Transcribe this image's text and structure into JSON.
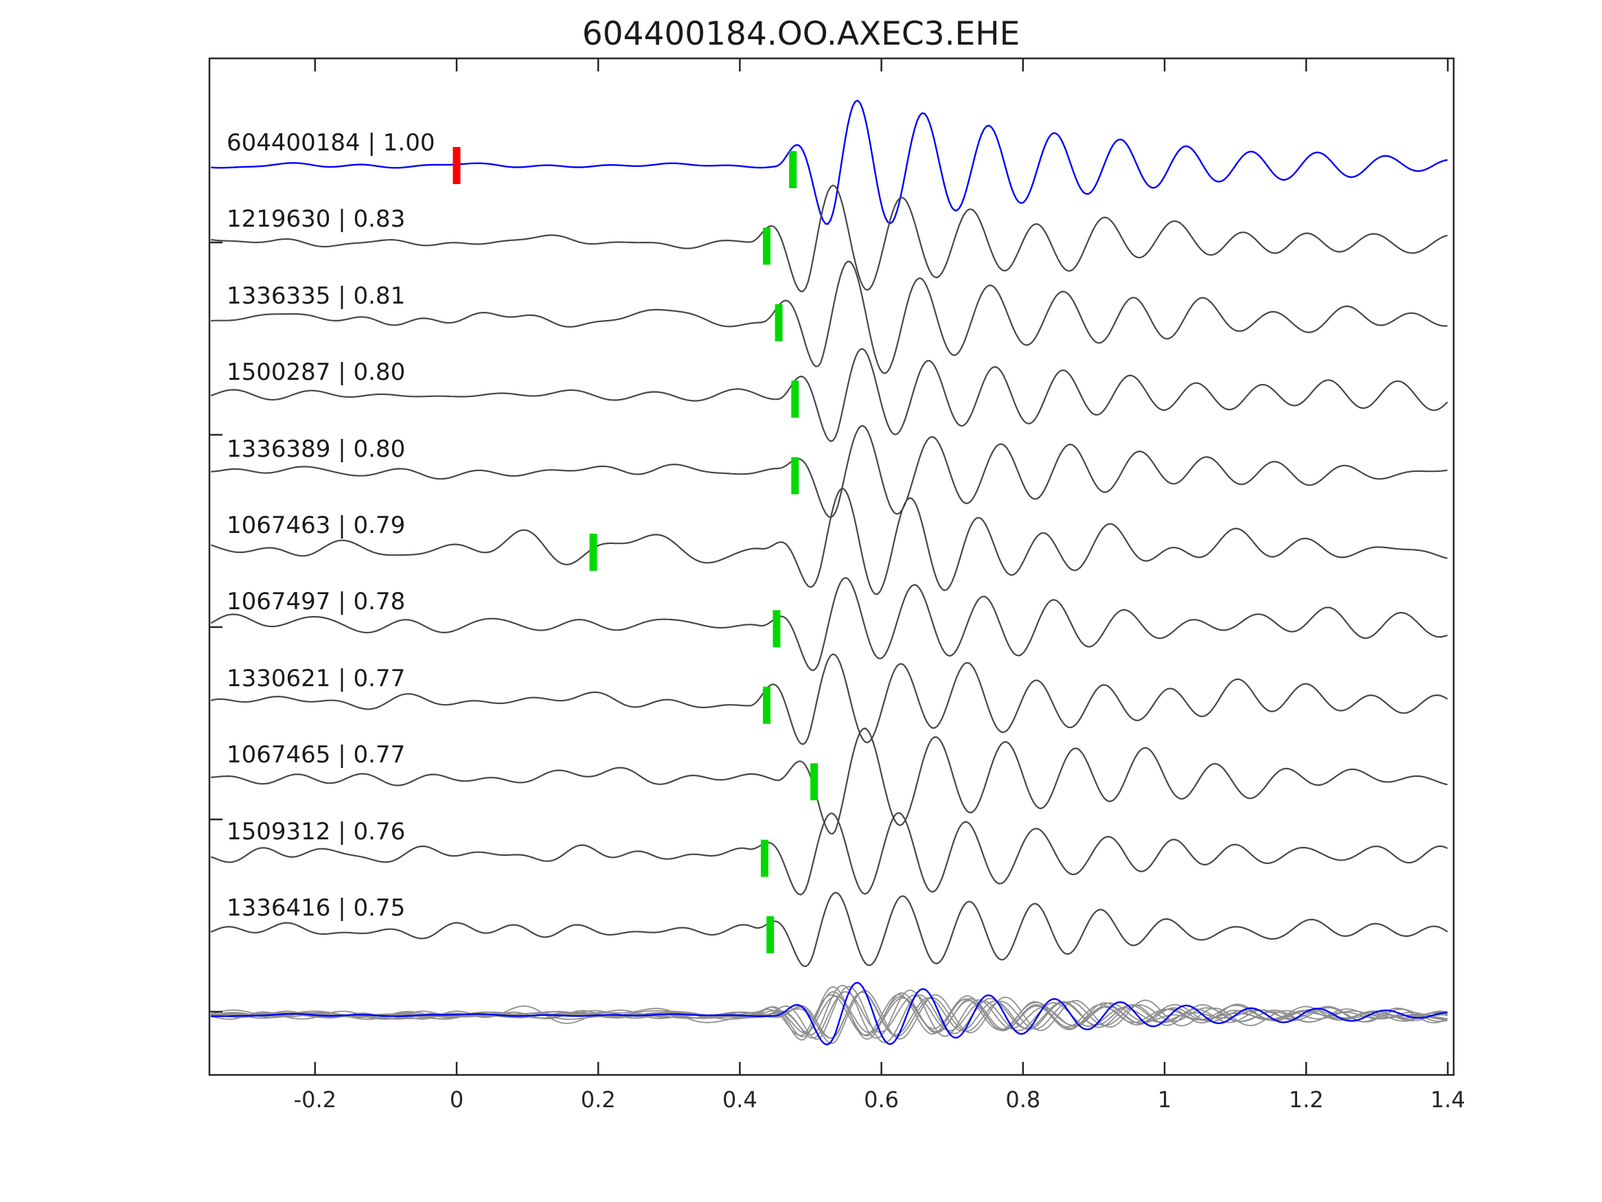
{
  "title": "604400184.OO.AXEC3.EHE",
  "chart_data": {
    "type": "line",
    "subtype": "seismic-waveform-correlation-stack",
    "title": "604400184.OO.AXEC3.EHE",
    "xlabel": "",
    "ylabel": "",
    "xlim": [
      -0.347,
      1.402
    ],
    "x_ticks": [
      -0.2,
      0,
      0.2,
      0.4,
      0.6,
      0.8,
      1,
      1.2,
      1.4
    ],
    "x_tick_labels": [
      "-0.2",
      "0",
      "0.2",
      "0.4",
      "0.6",
      "0.8",
      "1",
      "1.2",
      "1.4"
    ],
    "grid": false,
    "legend": null,
    "colors": {
      "template_trace": "#0000ff",
      "detection_trace": "#474747",
      "overlay_trace": "#8f8f8f",
      "pick_marker_green": "#00d900",
      "pick_marker_red": "#ff0000",
      "axis": "#262626",
      "background": "#ffffff"
    },
    "traces": [
      {
        "id": "604400184",
        "label": "604400184 | 1.00",
        "correlation": 1.0,
        "role": "template",
        "color": "#0000ff",
        "picks": [
          {
            "time": 0.0,
            "color": "#ff0000"
          },
          {
            "time": 0.475,
            "color": "#00d900"
          }
        ],
        "onset_time": 0.45,
        "noise_amp": 4,
        "burst_amp": 125,
        "period": 0.093,
        "seed": 11
      },
      {
        "id": "1219630",
        "label": "1219630 | 0.83",
        "correlation": 0.83,
        "role": "detection",
        "color": "#474747",
        "picks": [
          {
            "time": 0.438,
            "color": "#00d900"
          }
        ],
        "onset_time": 0.413,
        "noise_amp": 9,
        "burst_amp": 105,
        "period": 0.096,
        "seed": 22
      },
      {
        "id": "1336335",
        "label": "1336335 | 0.81",
        "correlation": 0.81,
        "role": "detection",
        "color": "#474747",
        "picks": [
          {
            "time": 0.455,
            "color": "#00d900"
          }
        ],
        "onset_time": 0.43,
        "noise_amp": 10,
        "burst_amp": 110,
        "period": 0.1,
        "seed": 33
      },
      {
        "id": "1500287",
        "label": "1500287 | 0.80",
        "correlation": 0.8,
        "role": "detection",
        "color": "#474747",
        "picks": [
          {
            "time": 0.478,
            "color": "#00d900"
          }
        ],
        "onset_time": 0.453,
        "noise_amp": 8,
        "burst_amp": 98,
        "period": 0.095,
        "seed": 44
      },
      {
        "id": "1336389",
        "label": "1336389 | 0.80",
        "correlation": 0.8,
        "role": "detection",
        "color": "#474747",
        "picks": [
          {
            "time": 0.478,
            "color": "#00d900"
          }
        ],
        "onset_time": 0.453,
        "noise_amp": 9,
        "burst_amp": 92,
        "period": 0.097,
        "seed": 55
      },
      {
        "id": "1067463",
        "label": "1067463 | 0.79",
        "correlation": 0.79,
        "role": "detection",
        "color": "#474747",
        "picks": [
          {
            "time": 0.193,
            "color": "#00d900"
          }
        ],
        "onset_time": 0.43,
        "noise_amp": 26,
        "burst_amp": 85,
        "period": 0.094,
        "seed": 66
      },
      {
        "id": "1067497",
        "label": "1067497 | 0.78",
        "correlation": 0.78,
        "role": "detection",
        "color": "#474747",
        "picks": [
          {
            "time": 0.452,
            "color": "#00d900"
          }
        ],
        "onset_time": 0.427,
        "noise_amp": 11,
        "burst_amp": 90,
        "period": 0.098,
        "seed": 77
      },
      {
        "id": "1330621",
        "label": "1330621 | 0.77",
        "correlation": 0.77,
        "role": "detection",
        "color": "#474747",
        "picks": [
          {
            "time": 0.438,
            "color": "#00d900"
          }
        ],
        "onset_time": 0.413,
        "noise_amp": 11,
        "burst_amp": 98,
        "period": 0.095,
        "seed": 88
      },
      {
        "id": "1067465",
        "label": "1067465 | 0.77",
        "correlation": 0.77,
        "role": "detection",
        "color": "#474747",
        "picks": [
          {
            "time": 0.505,
            "color": "#00d900"
          }
        ],
        "onset_time": 0.45,
        "noise_amp": 17,
        "burst_amp": 105,
        "period": 0.1,
        "seed": 99
      },
      {
        "id": "1509312",
        "label": "1509312 | 0.76",
        "correlation": 0.76,
        "role": "detection",
        "color": "#474747",
        "picks": [
          {
            "time": 0.435,
            "color": "#00d900"
          }
        ],
        "onset_time": 0.41,
        "noise_amp": 10,
        "burst_amp": 92,
        "period": 0.096,
        "seed": 110
      },
      {
        "id": "1336416",
        "label": "1336416 | 0.75",
        "correlation": 0.75,
        "role": "detection",
        "color": "#474747",
        "picks": [
          {
            "time": 0.443,
            "color": "#00d900"
          }
        ],
        "onset_time": 0.418,
        "noise_amp": 10,
        "burst_amp": 85,
        "period": 0.094,
        "seed": 121
      }
    ],
    "overlay_row": {
      "description": "All 11 traces superimposed; detections in gray, template in blue on top",
      "trace_color": "#8f8f8f",
      "template_color": "#0000ff",
      "amplitude_scale": 0.5
    }
  }
}
